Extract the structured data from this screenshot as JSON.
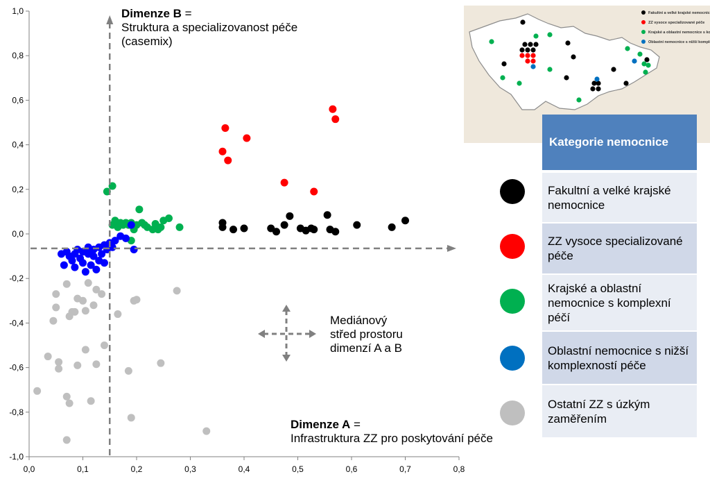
{
  "chart_data": {
    "type": "scatter",
    "xlim": [
      0,
      0.8
    ],
    "ylim": [
      -1.0,
      1.0
    ],
    "x_ticks": [
      "0,0",
      "0,1",
      "0,2",
      "0,3",
      "0,4",
      "0,5",
      "0,6",
      "0,7",
      "0,8"
    ],
    "y_ticks": [
      "1,0",
      "0,8",
      "0,6",
      "0,4",
      "0,2",
      "0,0",
      "-0,2",
      "-0,4",
      "-0,6",
      "-0,8",
      "-1,0"
    ],
    "median": {
      "x": 0.15,
      "y": -0.065
    },
    "series": [
      {
        "name": "Fakultní  a velké krajské nemocnice",
        "color": "#000000",
        "points": [
          [
            0.36,
            0.05
          ],
          [
            0.36,
            0.03
          ],
          [
            0.38,
            0.02
          ],
          [
            0.4,
            0.025
          ],
          [
            0.45,
            0.025
          ],
          [
            0.46,
            0.01
          ],
          [
            0.475,
            0.04
          ],
          [
            0.485,
            0.08
          ],
          [
            0.505,
            0.025
          ],
          [
            0.515,
            0.015
          ],
          [
            0.525,
            0.025
          ],
          [
            0.53,
            0.02
          ],
          [
            0.555,
            0.085
          ],
          [
            0.56,
            0.02
          ],
          [
            0.57,
            0.01
          ],
          [
            0.61,
            0.04
          ],
          [
            0.675,
            0.03
          ],
          [
            0.7,
            0.06
          ]
        ]
      },
      {
        "name": "ZZ vysoce specializované  péče",
        "color": "#ff0000",
        "points": [
          [
            0.36,
            0.37
          ],
          [
            0.365,
            0.475
          ],
          [
            0.37,
            0.33
          ],
          [
            0.405,
            0.43
          ],
          [
            0.475,
            0.23
          ],
          [
            0.53,
            0.19
          ],
          [
            0.565,
            0.56
          ],
          [
            0.57,
            0.515
          ]
        ]
      },
      {
        "name": "Krajské a oblastní nemocnice  s komplexní péčí",
        "color": "#00b050",
        "points": [
          [
            0.145,
            0.19
          ],
          [
            0.155,
            0.215
          ],
          [
            0.155,
            0.04
          ],
          [
            0.16,
            0.06
          ],
          [
            0.165,
            0.03
          ],
          [
            0.17,
            0.05
          ],
          [
            0.175,
            0.04
          ],
          [
            0.18,
            0.05
          ],
          [
            0.185,
            0.04
          ],
          [
            0.19,
            -0.03
          ],
          [
            0.19,
            0.05
          ],
          [
            0.195,
            0.02
          ],
          [
            0.2,
            0.04
          ],
          [
            0.205,
            0.11
          ],
          [
            0.21,
            0.05
          ],
          [
            0.215,
            0.04
          ],
          [
            0.22,
            0.03
          ],
          [
            0.23,
            0.02
          ],
          [
            0.235,
            0.045
          ],
          [
            0.24,
            0.02
          ],
          [
            0.245,
            0.03
          ],
          [
            0.25,
            0.06
          ],
          [
            0.26,
            0.07
          ],
          [
            0.28,
            0.03
          ]
        ]
      },
      {
        "name": "Oblastní  nemocnice s nižší komplexností  péče",
        "color": "#0000ff",
        "points": [
          [
            0.06,
            -0.09
          ],
          [
            0.065,
            -0.14
          ],
          [
            0.07,
            -0.08
          ],
          [
            0.075,
            -0.1
          ],
          [
            0.08,
            -0.12
          ],
          [
            0.085,
            -0.09
          ],
          [
            0.085,
            -0.15
          ],
          [
            0.09,
            -0.07
          ],
          [
            0.095,
            -0.11
          ],
          [
            0.1,
            -0.08
          ],
          [
            0.1,
            -0.13
          ],
          [
            0.105,
            -0.17
          ],
          [
            0.11,
            -0.09
          ],
          [
            0.11,
            -0.06
          ],
          [
            0.115,
            -0.14
          ],
          [
            0.12,
            -0.1
          ],
          [
            0.12,
            -0.07
          ],
          [
            0.125,
            -0.16
          ],
          [
            0.13,
            -0.06
          ],
          [
            0.13,
            -0.12
          ],
          [
            0.135,
            -0.09
          ],
          [
            0.14,
            -0.05
          ],
          [
            0.14,
            -0.13
          ],
          [
            0.145,
            -0.07
          ],
          [
            0.15,
            -0.04
          ],
          [
            0.155,
            -0.06
          ],
          [
            0.16,
            -0.03
          ],
          [
            0.17,
            -0.01
          ],
          [
            0.18,
            -0.02
          ],
          [
            0.19,
            0.04
          ],
          [
            0.195,
            -0.07
          ]
        ]
      },
      {
        "name": "Ostatní ZZ s úzkým zaměřením",
        "color": "#bfbfbf",
        "points": [
          [
            0.015,
            -0.705
          ],
          [
            0.035,
            -0.55
          ],
          [
            0.045,
            -0.39
          ],
          [
            0.05,
            -0.33
          ],
          [
            0.05,
            -0.27
          ],
          [
            0.055,
            -0.605
          ],
          [
            0.055,
            -0.575
          ],
          [
            0.07,
            -0.925
          ],
          [
            0.07,
            -0.73
          ],
          [
            0.07,
            -0.225
          ],
          [
            0.075,
            -0.76
          ],
          [
            0.075,
            -0.37
          ],
          [
            0.08,
            -0.35
          ],
          [
            0.085,
            -0.35
          ],
          [
            0.09,
            -0.29
          ],
          [
            0.09,
            -0.59
          ],
          [
            0.1,
            -0.3
          ],
          [
            0.105,
            -0.345
          ],
          [
            0.105,
            -0.52
          ],
          [
            0.11,
            -0.22
          ],
          [
            0.115,
            -0.75
          ],
          [
            0.12,
            -0.32
          ],
          [
            0.125,
            -0.25
          ],
          [
            0.125,
            -0.585
          ],
          [
            0.135,
            -0.27
          ],
          [
            0.14,
            -0.5
          ],
          [
            0.165,
            -0.36
          ],
          [
            0.185,
            -0.615
          ],
          [
            0.19,
            -0.825
          ],
          [
            0.195,
            -0.3
          ],
          [
            0.2,
            -0.295
          ],
          [
            0.245,
            -0.58
          ],
          [
            0.275,
            -0.255
          ],
          [
            0.33,
            -0.885
          ]
        ]
      }
    ]
  },
  "annotations": {
    "dim_b_title": "Dimenze B",
    "dim_b_eq": " =",
    "dim_b_l2": "Struktura  a specializovanost  péče",
    "dim_b_l3": "(casemix)",
    "dim_a_title": "Dimenze A",
    "dim_a_eq": " =",
    "dim_a_l2": "Infrastruktura ZZ pro poskytování  péče",
    "median_l1": "Mediánový",
    "median_l2": "střed prostoru",
    "median_l3": "dimenzí  A a B"
  },
  "legend": {
    "header": "Kategorie nemocnice",
    "items": [
      {
        "label": "Fakultní  a velké krajské nemocnice",
        "color": "#000000"
      },
      {
        "label": "ZZ vysoce specializované  péče",
        "color": "#ff0000"
      },
      {
        "label": "Krajské a oblastní nemocnice  s komplexní péčí",
        "color": "#00b050"
      },
      {
        "label": "Oblastní  nemocnice s nižší komplexností  péče",
        "color": "#0070c0"
      },
      {
        "label": "Ostatní ZZ s úzkým zaměřením",
        "color": "#bfbfbf"
      }
    ]
  },
  "map": {
    "legend_items": [
      {
        "label": "Fakultní  a velké krajské nemocnice",
        "color": "#000000"
      },
      {
        "label": "ZZ vysoce specializované péče",
        "color": "#ff0000"
      },
      {
        "label": "Krajské a oblastní nemocnice s komplexní péčí",
        "color": "#00b050"
      },
      {
        "label": "Oblastní nemocnice s nižší komplexností péče",
        "color": "#0070c0"
      }
    ]
  }
}
